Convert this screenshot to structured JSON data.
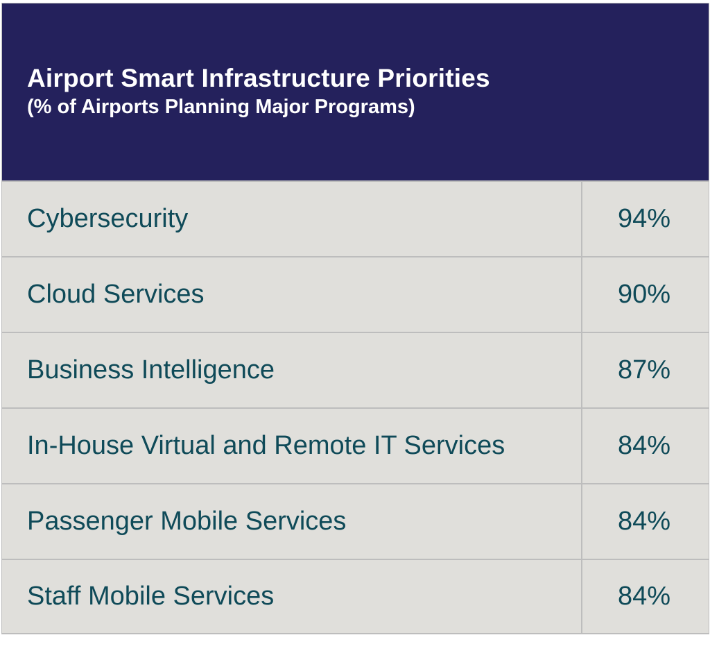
{
  "chart_data": {
    "type": "table",
    "title": "Airport Smart Infrastructure Priorities",
    "subtitle": "(% of Airports Planning Major Programs)",
    "rows": [
      {
        "label": "Cybersecurity",
        "value": "94%"
      },
      {
        "label": "Cloud Services",
        "value": "90%"
      },
      {
        "label": "Business Intelligence",
        "value": "87%"
      },
      {
        "label": "In-House Virtual and Remote IT Services",
        "value": "84%"
      },
      {
        "label": "Passenger Mobile Services",
        "value": "84%"
      },
      {
        "label": "Staff Mobile Services",
        "value": "84%"
      }
    ],
    "colors": {
      "header": "#24215c",
      "cell": "#e0dfdb",
      "text": "#0f4a58",
      "border": "#bdbdbd"
    }
  }
}
